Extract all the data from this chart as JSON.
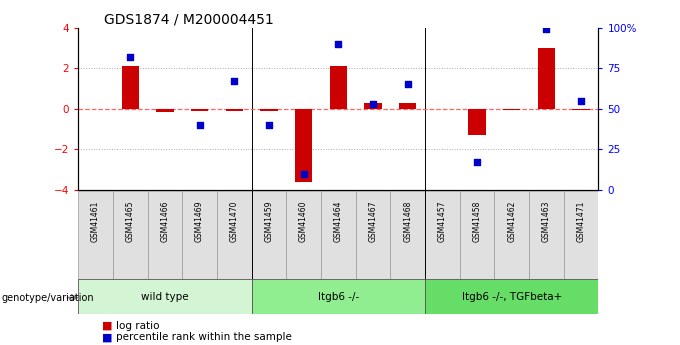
{
  "title": "GDS1874 / M200004451",
  "samples": [
    "GSM41461",
    "GSM41465",
    "GSM41466",
    "GSM41469",
    "GSM41470",
    "GSM41459",
    "GSM41460",
    "GSM41464",
    "GSM41467",
    "GSM41468",
    "GSM41457",
    "GSM41458",
    "GSM41462",
    "GSM41463",
    "GSM41471"
  ],
  "log_ratio": [
    0.0,
    2.1,
    -0.15,
    -0.1,
    -0.1,
    -0.1,
    -3.6,
    2.1,
    0.3,
    0.3,
    0.0,
    -1.3,
    -0.05,
    3.0,
    -0.05
  ],
  "percentile_rank": [
    null,
    82,
    null,
    40,
    67,
    40,
    10,
    90,
    53,
    65,
    null,
    17,
    null,
    99,
    55
  ],
  "groups": [
    {
      "label": "wild type",
      "start": 0,
      "end": 5,
      "color": "#d4f5d4"
    },
    {
      "label": "Itgb6 -/-",
      "start": 5,
      "end": 10,
      "color": "#90ee90"
    },
    {
      "label": "Itgb6 -/-, TGFbeta+",
      "start": 10,
      "end": 15,
      "color": "#66dd66"
    }
  ],
  "bar_color": "#cc0000",
  "dot_color": "#0000cc",
  "zero_line_color": "#ff6666",
  "dot_line_color": "#aaaaaa",
  "ylim_left": [
    -4,
    4
  ],
  "ylim_right": [
    0,
    100
  ],
  "yticks_left": [
    -4,
    -2,
    0,
    2,
    4
  ],
  "yticks_right": [
    0,
    25,
    50,
    75,
    100
  ],
  "ytick_labels_right": [
    "0",
    "25",
    "50",
    "75",
    "100%"
  ],
  "legend_items": [
    {
      "label": "log ratio",
      "color": "#cc0000"
    },
    {
      "label": "percentile rank within the sample",
      "color": "#0000cc"
    }
  ],
  "genotype_label": "genotype/variation"
}
